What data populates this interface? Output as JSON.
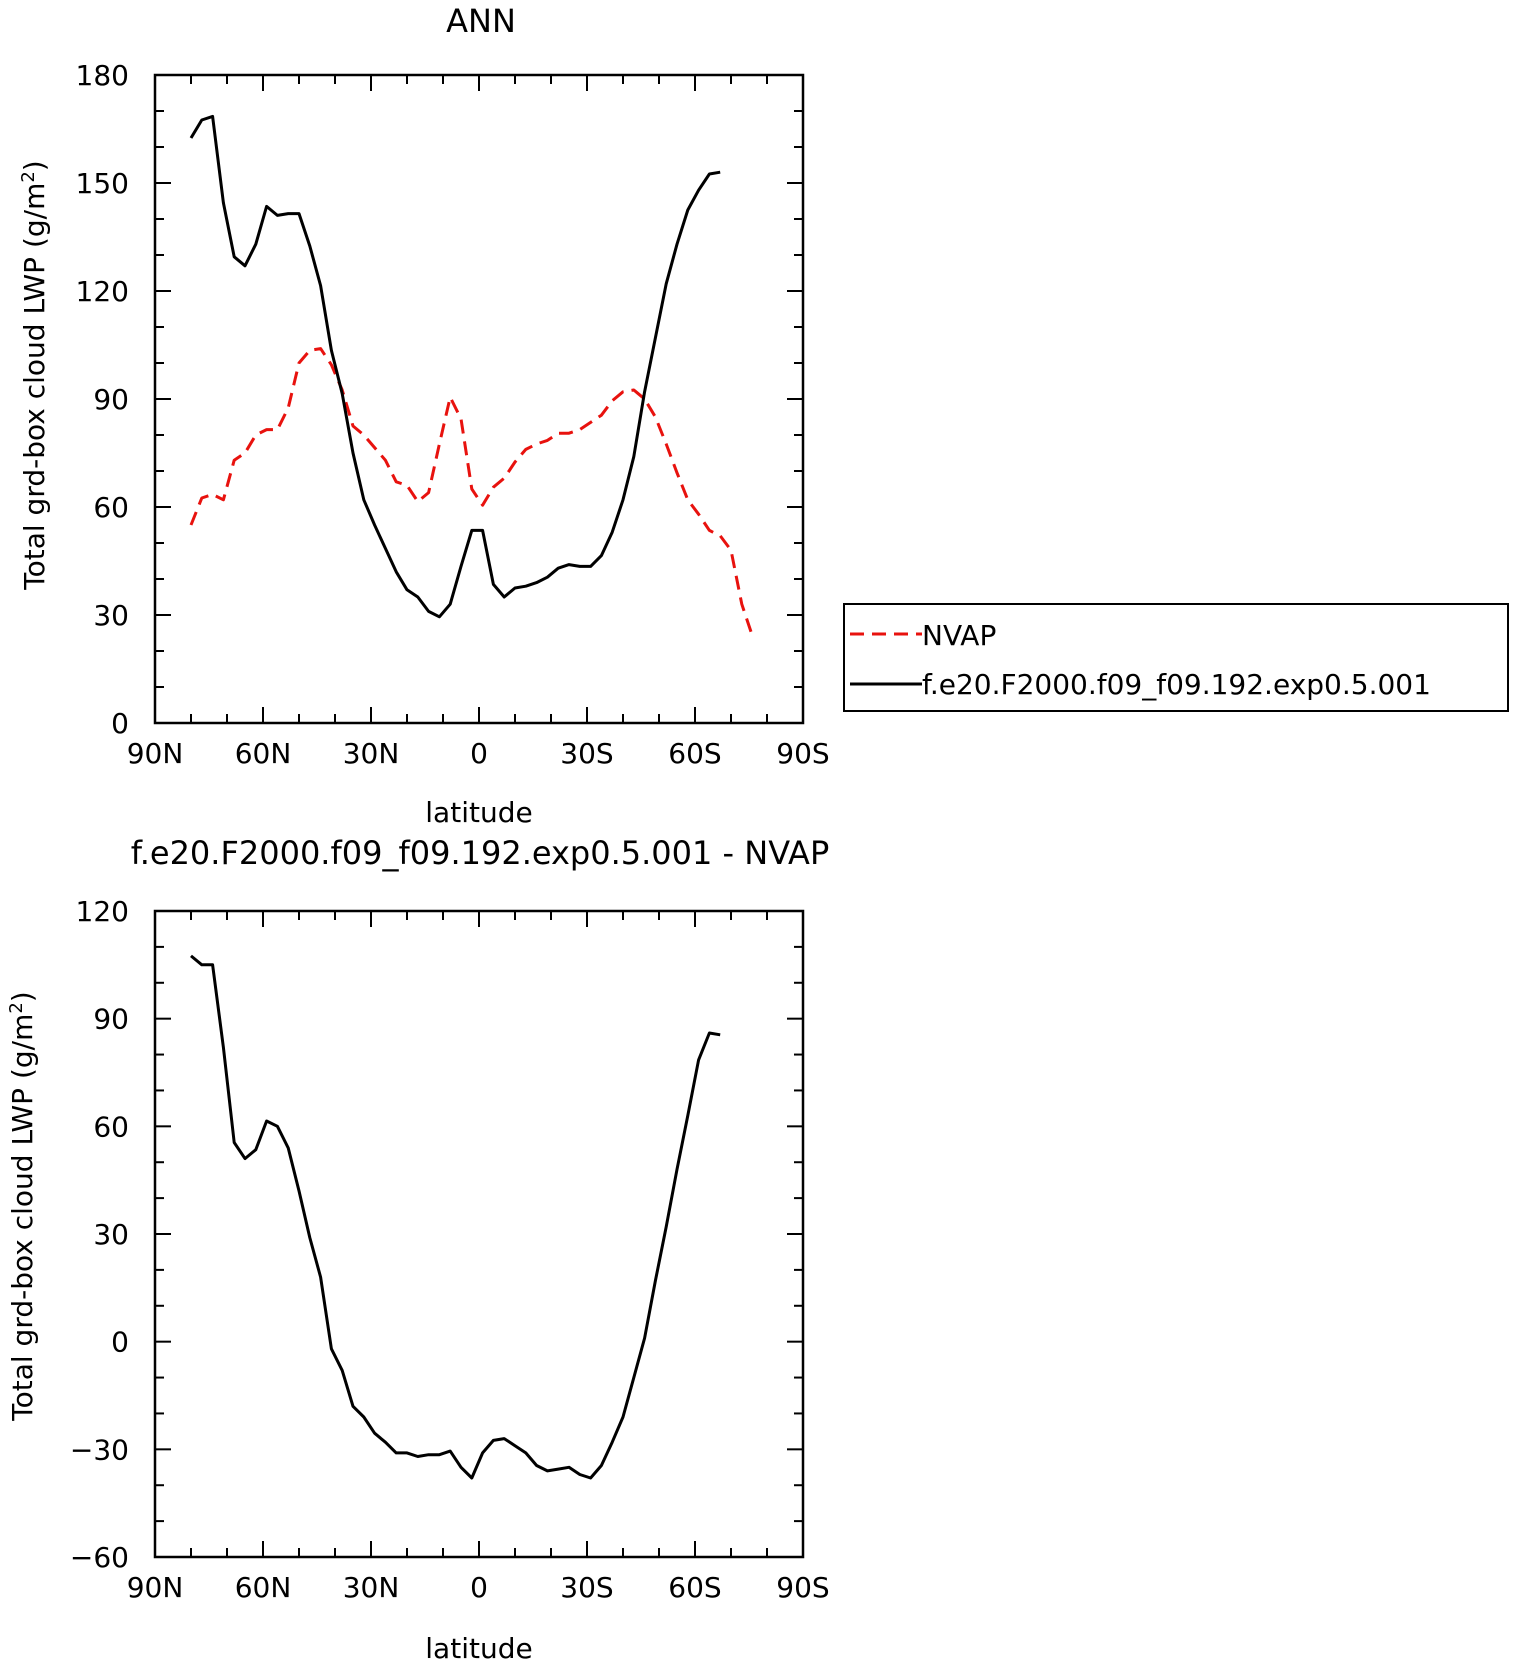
{
  "chart_data": [
    {
      "type": "line",
      "title": "ANN",
      "xlabel": "latitude",
      "ylabel": "Total grd-box cloud LWP (g/m2)",
      "ylabel_parts": [
        "Total grd-box cloud LWP (g/m",
        "2",
        ")"
      ],
      "xlim": [
        90,
        -90
      ],
      "ylim": [
        0,
        180
      ],
      "x_ticks": [
        90,
        60,
        30,
        0,
        -30,
        -60,
        -90
      ],
      "x_tick_labels": [
        "90N",
        "60N",
        "30N",
        "0",
        "30S",
        "60S",
        "90S"
      ],
      "y_ticks": [
        0,
        30,
        60,
        90,
        120,
        150,
        180
      ],
      "y_tick_labels": [
        "0",
        "30",
        "60",
        "90",
        "120",
        "150",
        "180"
      ],
      "grid": false,
      "legend_position": "right",
      "series": [
        {
          "name": "NVAP",
          "color": "#e8120e",
          "dash": "dashed",
          "x": [
            80,
            77,
            74,
            71,
            68,
            65,
            62,
            59,
            56,
            53,
            50,
            47,
            44,
            41,
            38,
            35,
            32,
            29,
            26,
            23,
            20,
            17,
            14,
            11,
            8,
            5,
            2,
            -1,
            -4,
            -7,
            -10,
            -13,
            -16,
            -19,
            -22,
            -25,
            -28,
            -31,
            -34,
            -37,
            -40,
            -43,
            -46,
            -49,
            -52,
            -55,
            -58,
            -61,
            -64,
            -67,
            -70,
            -73,
            -76
          ],
          "y": [
            55,
            62.5,
            63.5,
            62,
            73,
            75,
            80,
            81.5,
            81.5,
            87.5,
            100,
            103.5,
            104,
            99.5,
            92.5,
            82.5,
            80,
            76.5,
            73,
            67,
            66,
            61.5,
            64,
            77.5,
            90.5,
            84.5,
            65,
            60.5,
            65.5,
            68,
            72.5,
            76,
            77.5,
            78.5,
            80.5,
            80.5,
            81.5,
            83.5,
            85.5,
            89.5,
            92,
            92.5,
            90,
            85,
            77.5,
            69.5,
            62,
            58,
            53.5,
            52,
            48,
            33,
            24
          ]
        },
        {
          "name": "f.e20.F2000.f09_f09.192.exp0.5.001",
          "color": "#000000",
          "dash": "solid",
          "x": [
            80,
            77,
            74,
            71,
            68,
            65,
            62,
            59,
            56,
            53,
            50,
            47,
            44,
            41,
            38,
            35,
            32,
            29,
            26,
            23,
            20,
            17,
            14,
            11,
            8,
            5,
            2,
            -1,
            -4,
            -7,
            -10,
            -13,
            -16,
            -19,
            -22,
            -25,
            -28,
            -31,
            -34,
            -37,
            -40,
            -43,
            -46,
            -49,
            -52,
            -55,
            -58,
            -61,
            -64,
            -67
          ],
          "y": [
            162.5,
            167.5,
            168.5,
            144.5,
            129.5,
            127,
            133,
            143.5,
            141,
            141.5,
            141.5,
            132.5,
            121.5,
            103.5,
            91.5,
            75,
            62,
            55,
            48.5,
            42,
            37,
            35,
            31,
            29.5,
            33,
            43.5,
            53.5,
            53.5,
            38.5,
            35,
            37.5,
            38,
            39,
            40.5,
            43,
            44,
            43.5,
            43.5,
            46.5,
            53,
            62,
            74,
            92,
            107,
            122,
            133,
            142.5,
            148,
            152.5,
            153
          ]
        }
      ]
    },
    {
      "type": "line",
      "title": "f.e20.F2000.f09_f09.192.exp0.5.001 - NVAP",
      "xlabel": "latitude",
      "ylabel": "Total grd-box cloud LWP (g/m2)",
      "ylabel_parts": [
        "Total grd-box cloud LWP (g/m",
        "2",
        ")"
      ],
      "xlim": [
        90,
        -90
      ],
      "ylim": [
        -60,
        120
      ],
      "x_ticks": [
        90,
        60,
        30,
        0,
        -30,
        -60,
        -90
      ],
      "x_tick_labels": [
        "90N",
        "60N",
        "30N",
        "0",
        "30S",
        "60S",
        "90S"
      ],
      "y_ticks": [
        -60,
        -30,
        0,
        30,
        60,
        90,
        120
      ],
      "y_tick_labels": [
        "−60",
        "−30",
        "0",
        "30",
        "60",
        "90",
        "120"
      ],
      "grid": false,
      "series": [
        {
          "name": "",
          "color": "#000000",
          "dash": "solid",
          "x": [
            80,
            77,
            74,
            71,
            68,
            65,
            62,
            59,
            56,
            53,
            50,
            47,
            44,
            41,
            38,
            35,
            32,
            29,
            26,
            23,
            20,
            17,
            14,
            11,
            8,
            5,
            2,
            -1,
            -4,
            -7,
            -10,
            -13,
            -16,
            -19,
            -22,
            -25,
            -28,
            -31,
            -34,
            -37,
            -40,
            -43,
            -46,
            -49,
            -52,
            -55,
            -58,
            -61,
            -64,
            -67
          ],
          "y": [
            107.5,
            105,
            105,
            82,
            55.5,
            51,
            53.5,
            61.5,
            60,
            54,
            42,
            29,
            18,
            -2,
            -8,
            -18,
            -21,
            -25.5,
            -28,
            -31,
            -31,
            -32,
            -31.5,
            -31.5,
            -30.5,
            -35,
            -38,
            -31,
            -27.5,
            -27,
            -29,
            -31,
            -34.5,
            -36,
            -35.5,
            -35,
            -37,
            -38,
            -34.5,
            -28,
            -21,
            -10,
            1,
            17,
            32,
            48,
            63,
            78.5,
            86,
            85.5
          ]
        }
      ]
    }
  ]
}
